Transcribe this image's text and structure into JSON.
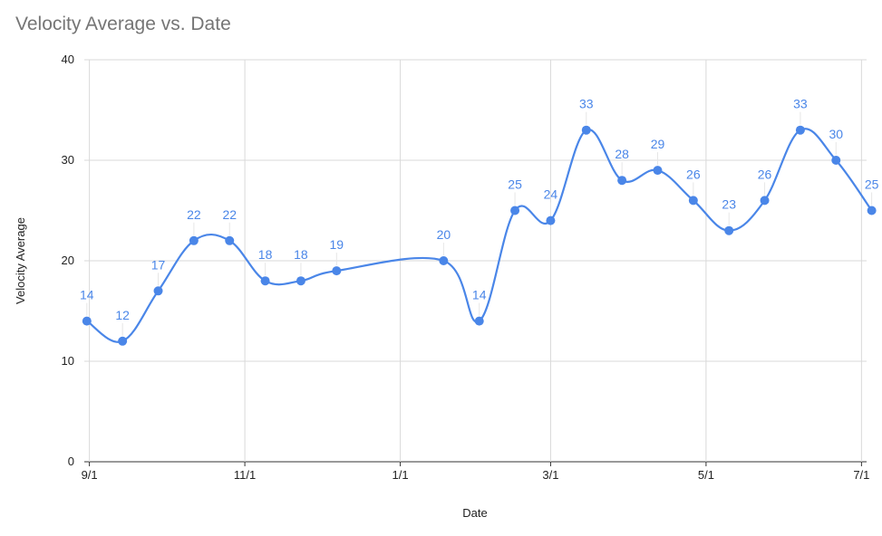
{
  "chart_data": {
    "type": "line",
    "title": "Velocity Average vs. Date",
    "xlabel": "Date",
    "ylabel": "Velocity Average",
    "ylim": [
      0,
      40
    ],
    "y_ticks": [
      "0",
      "10",
      "20",
      "30",
      "40"
    ],
    "x_ticks": [
      {
        "label": "9/1",
        "date": "2021-09-01"
      },
      {
        "label": "11/1",
        "date": "2021-11-01"
      },
      {
        "label": "1/1",
        "date": "2022-01-01"
      },
      {
        "label": "3/1",
        "date": "2022-03-01"
      },
      {
        "label": "5/1",
        "date": "2022-05-01"
      },
      {
        "label": "7/1",
        "date": "2022-07-01"
      }
    ],
    "xlim": [
      "2021-08-30",
      "2022-07-03"
    ],
    "grid": true,
    "smooth": true,
    "line_color": "#4a86e8",
    "series": [
      {
        "x": [
          "2021-08-31",
          "2021-09-14",
          "2021-09-28",
          "2021-10-12",
          "2021-10-26",
          "2021-11-09",
          "2021-11-23",
          "2021-12-07",
          "2022-01-18",
          "2022-02-01",
          "2022-02-15",
          "2022-03-01",
          "2022-03-15",
          "2022-03-29",
          "2022-04-12",
          "2022-04-26",
          "2022-05-10",
          "2022-05-24",
          "2022-06-07",
          "2022-06-21",
          "2022-07-05"
        ],
        "values": [
          14,
          12,
          17,
          22,
          22,
          18,
          18,
          19,
          20,
          14,
          25,
          24,
          33,
          28,
          29,
          26,
          23,
          26,
          33,
          30,
          25
        ]
      }
    ]
  }
}
